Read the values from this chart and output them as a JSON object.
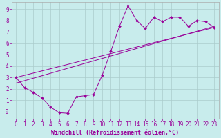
{
  "bg_color": "#c8ecec",
  "line_color": "#990099",
  "grid_color": "#aacccc",
  "spine_color": "#aaaaaa",
  "xlabel": "Windchill (Refroidissement éolien,°C)",
  "xlim": [
    -0.5,
    23.5
  ],
  "ylim": [
    -0.6,
    9.6
  ],
  "xticks": [
    0,
    1,
    2,
    3,
    4,
    5,
    6,
    7,
    8,
    9,
    10,
    11,
    12,
    13,
    14,
    15,
    16,
    17,
    18,
    19,
    20,
    21,
    22,
    23
  ],
  "yticks": [
    0,
    1,
    2,
    3,
    4,
    5,
    6,
    7,
    8,
    9
  ],
  "ytick_labels": [
    "-0",
    "1",
    "2",
    "3",
    "4",
    "5",
    "6",
    "7",
    "8",
    "9"
  ],
  "series1_x": [
    0,
    1,
    2,
    3,
    4,
    5,
    6,
    7,
    8,
    9,
    10,
    11,
    12,
    13,
    14,
    15,
    16,
    17,
    18,
    19,
    20,
    21,
    22,
    23
  ],
  "series1_y": [
    3.0,
    2.1,
    1.7,
    1.2,
    0.4,
    -0.1,
    -0.15,
    1.3,
    1.4,
    1.5,
    3.2,
    5.3,
    7.5,
    9.3,
    8.0,
    7.3,
    8.3,
    7.9,
    8.3,
    8.3,
    7.5,
    8.0,
    7.9,
    7.4
  ],
  "series2_x": [
    0,
    23
  ],
  "series2_y": [
    2.5,
    7.5
  ],
  "series3_x": [
    0,
    23
  ],
  "series3_y": [
    3.0,
    7.4
  ],
  "marker": "D",
  "marker_size": 2.0,
  "line_width": 0.7,
  "font_size": 5.5,
  "tick_font_size": 5.5,
  "xlabel_font_size": 6.0
}
